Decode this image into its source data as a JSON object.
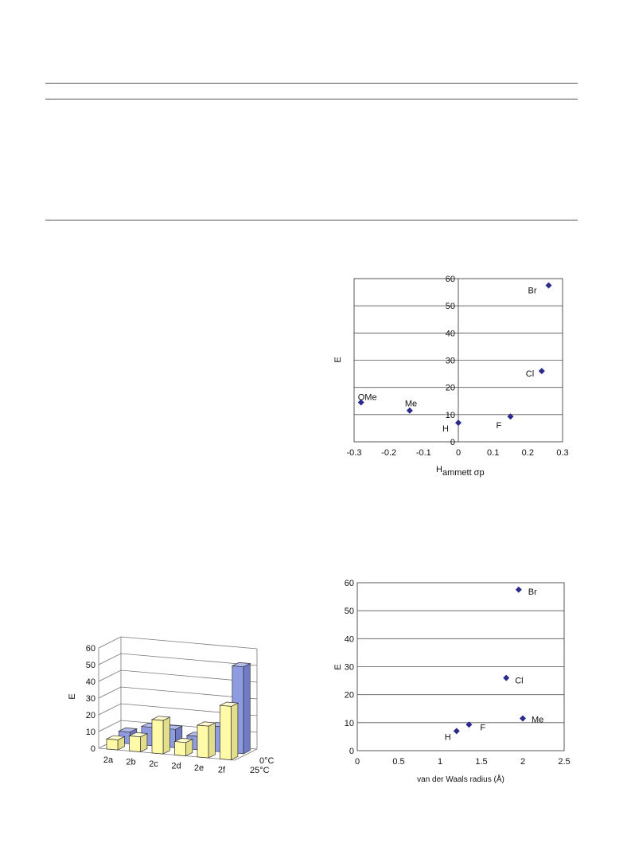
{
  "chart_data": [
    {
      "type": "scatter",
      "title": "",
      "xlabel": "Hammett σp",
      "ylabel": "E",
      "xlim": [
        -0.3,
        0.3
      ],
      "ylim": [
        0,
        60
      ],
      "xticks": [
        "-0.3",
        "-0.2",
        "-0.1",
        "0",
        "0.1",
        "0.2",
        "0.3"
      ],
      "yticks": [
        "0",
        "10",
        "20",
        "30",
        "40",
        "50",
        "60"
      ],
      "grid": "horizontal",
      "points": [
        {
          "label": "OMe",
          "x": -0.28,
          "y": 14.5
        },
        {
          "label": "Me",
          "x": -0.14,
          "y": 11.5
        },
        {
          "label": "H",
          "x": 0.0,
          "y": 7.0
        },
        {
          "label": "F",
          "x": 0.15,
          "y": 9.3
        },
        {
          "label": "Cl",
          "x": 0.24,
          "y": 26.0
        },
        {
          "label": "Br",
          "x": 0.26,
          "y": 57.5
        }
      ]
    },
    {
      "type": "bar",
      "title": "",
      "xlabel": "",
      "ylabel": "E",
      "ylim": [
        0,
        60
      ],
      "yticks": [
        "0",
        "10",
        "20",
        "30",
        "40",
        "50",
        "60"
      ],
      "categories": [
        "2a",
        "2b",
        "2c",
        "2d",
        "2e",
        "2f"
      ],
      "series": [
        {
          "name": "0°C",
          "color": "#8f9be0",
          "values": [
            7,
            11,
            11,
            8,
            15,
            52
          ]
        },
        {
          "name": "25°C",
          "color": "#fffaa8",
          "values": [
            6,
            9,
            20,
            8,
            19,
            32
          ]
        }
      ]
    },
    {
      "type": "scatter",
      "title": "",
      "xlabel": "van der Waals radius (Å)",
      "ylabel": "E",
      "xlim": [
        0,
        2.5
      ],
      "ylim": [
        0,
        60
      ],
      "xticks": [
        "0",
        "0.5",
        "1",
        "1.5",
        "2",
        "2.5"
      ],
      "yticks": [
        "0",
        "10",
        "20",
        "30",
        "40",
        "50",
        "60"
      ],
      "grid": "horizontal",
      "points": [
        {
          "label": "H",
          "x": 1.2,
          "y": 7.0
        },
        {
          "label": "F",
          "x": 1.35,
          "y": 9.3
        },
        {
          "label": "Cl",
          "x": 1.8,
          "y": 26.0
        },
        {
          "label": "Me",
          "x": 2.0,
          "y": 11.5
        },
        {
          "label": "Br",
          "x": 1.95,
          "y": 57.5
        }
      ]
    }
  ],
  "colors": {
    "marker": "#2a2a8c",
    "grid": "#555555",
    "bar_blue": "#8f9be0",
    "bar_yellow": "#fffaa8"
  }
}
